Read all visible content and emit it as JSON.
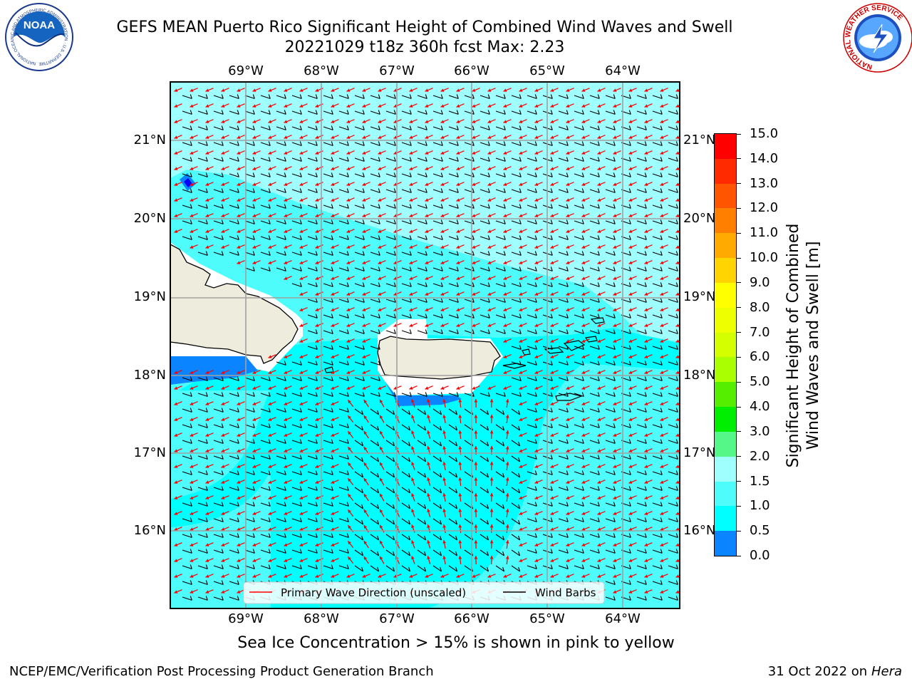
{
  "header": {
    "title_line1": "GEFS MEAN Puerto Rico Significant Height of Combined Wind Waves and Swell",
    "title_line2": "20221029 t18z 360h fcst   Max: 2.23"
  },
  "logos": {
    "left": {
      "name": "noaa-logo",
      "text": "NOAA",
      "ring_text": "NATIONAL OCEANIC AND ATMOSPHERIC ADMINISTRATION · U.S. DEPARTMENT OF COMMERCE"
    },
    "right": {
      "name": "nws-logo",
      "ring_text": "NATIONAL WEATHER SERVICE"
    }
  },
  "map": {
    "lon_labels": [
      "69°W",
      "68°W",
      "67°W",
      "66°W",
      "65°W",
      "64°W"
    ],
    "lat_labels": [
      "21°N",
      "20°N",
      "19°N",
      "18°N",
      "17°N",
      "16°N"
    ],
    "legend": {
      "wave_label": "Primary Wave Direction (unscaled)",
      "barb_label": "Wind Barbs",
      "wave_color": "#ff0000",
      "barb_color": "#000000"
    },
    "colors": {
      "ocean_light": "#9ffefe",
      "ocean_mid": "#4efcfc",
      "ocean_cyan": "#00ffff",
      "ocean_blue": "#0b84ff",
      "land": "#eeecdd"
    }
  },
  "colorbar": {
    "title_line1": "Significant Height of Combined",
    "title_line2": "Wind Waves and Swell [m]",
    "ticks": [
      "15.0",
      "14.0",
      "13.0",
      "12.0",
      "11.0",
      "10.0",
      "9.0",
      "8.0",
      "7.0",
      "6.0",
      "5.0",
      "4.0",
      "3.0",
      "2.0",
      "1.5",
      "1.0",
      "0.5",
      "0.0"
    ],
    "colors_top_down": [
      "#ff0000",
      "#ff2a00",
      "#ff5500",
      "#ff8000",
      "#ffaa00",
      "#ffd400",
      "#ffff00",
      "#eeff00",
      "#d4ff00",
      "#aaff00",
      "#55ee00",
      "#00ee00",
      "#55f888",
      "#9ffefe",
      "#4efcfc",
      "#00ffff",
      "#0b84ff",
      "#0000ff"
    ]
  },
  "subtitle": "Sea Ice Concentration > 15% is shown in pink to yellow",
  "footer": {
    "left": "NCEP/EMC/Verification Post Processing Product Generation Branch",
    "right_date": "31 Oct 2022 on ",
    "right_host": "Hera"
  }
}
